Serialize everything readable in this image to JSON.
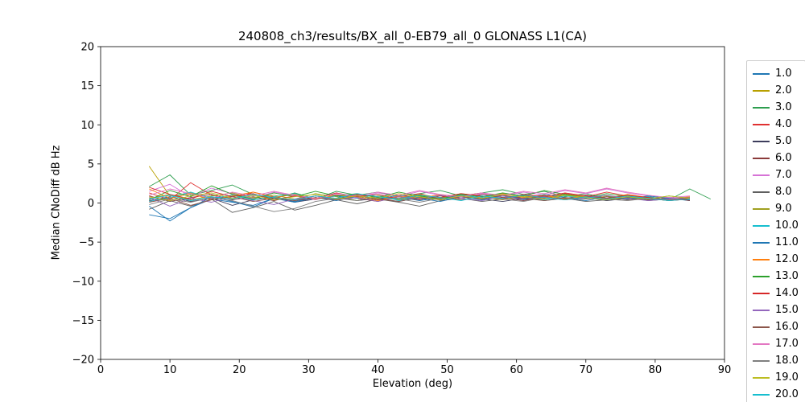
{
  "chart_data": {
    "type": "line",
    "title": "240808_ch3/results/BX_all_0-EB79_all_0 GLONASS L1(CA)",
    "xlabel": "Elevation (deg)",
    "ylabel": "Median CNoDiff dB Hz",
    "xlim": [
      0,
      90
    ],
    "ylim": [
      -20,
      20
    ],
    "x_ticks": [
      0,
      10,
      20,
      30,
      40,
      50,
      60,
      70,
      80,
      90
    ],
    "x_tick_labels": [
      "0",
      "10",
      "20",
      "30",
      "40",
      "50",
      "60",
      "70",
      "80",
      "90"
    ],
    "y_ticks": [
      -20,
      -15,
      -10,
      -5,
      0,
      5,
      10,
      15,
      20
    ],
    "y_tick_labels": [
      "−20",
      "−15",
      "−10",
      "−5",
      "0",
      "5",
      "10",
      "15",
      "20"
    ],
    "grid": false,
    "legend_position": "outside-right",
    "legend_clipped_at_bottom": true,
    "x": [
      7,
      10,
      13,
      16,
      19,
      22,
      25,
      28,
      31,
      34,
      37,
      40,
      43,
      46,
      49,
      52,
      55,
      58,
      61,
      64,
      67,
      70,
      73,
      76,
      79,
      82,
      85,
      88
    ],
    "series": [
      {
        "name": "1.0",
        "color": "#1f77b4",
        "values": [
          -0.4,
          -2.3,
          -0.6,
          0.5,
          0.1,
          -0.3,
          0.6,
          0.2,
          0.7,
          0.4,
          0.9,
          0.5,
          0.8,
          0.3,
          0.7,
          1.0,
          0.6,
          0.9,
          0.4,
          0.8,
          0.6,
          1.0,
          0.5,
          0.7,
          0.4,
          0.6,
          0.3,
          null
        ]
      },
      {
        "name": "2.0",
        "color": "#b8a000",
        "values": [
          4.7,
          0.9,
          1.3,
          0.6,
          1.0,
          0.4,
          0.8,
          0.3,
          0.9,
          0.5,
          1.1,
          0.7,
          0.4,
          0.9,
          0.6,
          1.1,
          0.8,
          0.5,
          0.9,
          0.6,
          1.0,
          0.7,
          0.9,
          0.5,
          0.8,
          0.4,
          0.6,
          null
        ]
      },
      {
        "name": "3.0",
        "color": "#2e9e4f",
        "values": [
          2.1,
          3.6,
          1.0,
          1.6,
          2.3,
          1.1,
          0.6,
          1.3,
          0.5,
          1.5,
          1.0,
          1.4,
          0.8,
          1.2,
          1.6,
          0.9,
          1.3,
          1.7,
          1.1,
          1.5,
          0.8,
          1.2,
          0.6,
          1.0,
          0.7,
          0.4,
          1.8,
          0.5
        ]
      },
      {
        "name": "4.0",
        "color": "#e03131",
        "values": [
          1.3,
          0.4,
          2.6,
          1.0,
          0.5,
          1.4,
          0.8,
          0.3,
          0.9,
          0.6,
          1.1,
          0.4,
          0.8,
          1.2,
          0.5,
          0.9,
          1.3,
          0.7,
          1.0,
          0.6,
          1.2,
          0.8,
          1.4,
          0.9,
          0.6,
          0.3,
          0.5,
          null
        ]
      },
      {
        "name": "5.0",
        "color": "#3d3d5c",
        "values": [
          0.3,
          0.8,
          0.2,
          0.6,
          -0.3,
          0.4,
          0.7,
          0.1,
          0.5,
          0.9,
          0.3,
          0.6,
          0.2,
          0.7,
          0.4,
          0.8,
          0.5,
          0.2,
          0.6,
          0.9,
          0.4,
          0.7,
          0.3,
          0.6,
          0.8,
          0.4,
          null,
          null
        ]
      },
      {
        "name": "6.0",
        "color": "#8b3a3a",
        "values": [
          0.9,
          0.2,
          0.7,
          1.1,
          0.4,
          0.8,
          0.3,
          0.9,
          0.5,
          1.0,
          0.6,
          0.2,
          0.8,
          0.4,
          0.9,
          0.6,
          1.1,
          0.7,
          0.3,
          0.8,
          0.5,
          1.0,
          0.6,
          0.9,
          0.4,
          0.7,
          0.3,
          null
        ]
      },
      {
        "name": "7.0",
        "color": "#d673d6",
        "values": [
          1.5,
          2.4,
          0.8,
          1.9,
          1.2,
          0.6,
          1.4,
          0.9,
          0.4,
          1.1,
          0.7,
          1.3,
          0.8,
          1.5,
          1.0,
          0.6,
          1.2,
          0.9,
          1.4,
          1.0,
          1.6,
          1.2,
          1.8,
          1.3,
          0.9,
          0.6,
          0.8,
          null
        ]
      },
      {
        "name": "8.0",
        "color": "#5f5f5f",
        "values": [
          -0.8,
          0.3,
          -0.4,
          0.5,
          -1.2,
          -0.6,
          0.2,
          -0.9,
          -0.3,
          0.4,
          -0.1,
          0.5,
          0.1,
          -0.4,
          0.3,
          0.6,
          0.2,
          0.5,
          0.8,
          0.3,
          0.6,
          0.2,
          0.4,
          0.7,
          0.3,
          0.5,
          null,
          null
        ]
      },
      {
        "name": "9.0",
        "color": "#a0a020",
        "values": [
          0.6,
          1.1,
          0.4,
          0.9,
          1.3,
          0.7,
          1.0,
          0.5,
          1.2,
          0.8,
          0.3,
          0.9,
          0.6,
          1.1,
          0.7,
          1.2,
          0.8,
          0.4,
          1.0,
          0.7,
          1.1,
          0.8,
          0.5,
          0.9,
          0.6,
          0.3,
          0.7,
          null
        ]
      },
      {
        "name": "10.0",
        "color": "#17becf",
        "values": [
          0.2,
          0.7,
          1.4,
          0.6,
          1.0,
          0.4,
          0.8,
          1.2,
          0.5,
          0.9,
          0.6,
          1.1,
          0.3,
          0.8,
          0.5,
          1.0,
          0.7,
          1.2,
          0.8,
          0.4,
          0.9,
          0.6,
          1.0,
          0.5,
          0.8,
          0.4,
          0.6,
          null
        ]
      },
      {
        "name": "11.0",
        "color": "#1f77b4",
        "values": [
          -1.5,
          -2.0,
          -0.6,
          0.8,
          0.2,
          -0.5,
          0.6,
          0.1,
          0.7,
          0.3,
          0.9,
          0.5,
          1.0,
          0.6,
          0.2,
          0.8,
          0.4,
          0.9,
          0.6,
          1.1,
          0.7,
          0.3,
          0.8,
          0.5,
          0.9,
          0.6,
          0.4,
          null
        ]
      },
      {
        "name": "12.0",
        "color": "#ff7f0e",
        "values": [
          1.8,
          0.6,
          1.2,
          0.4,
          0.9,
          1.4,
          0.7,
          1.1,
          0.5,
          1.0,
          0.8,
          0.3,
          0.9,
          0.6,
          1.1,
          0.4,
          0.8,
          1.2,
          0.7,
          1.0,
          0.5,
          0.9,
          0.6,
          1.1,
          0.7,
          0.4,
          0.8,
          null
        ]
      },
      {
        "name": "13.0",
        "color": "#2ca02c",
        "values": [
          0.4,
          1.6,
          0.8,
          2.2,
          1.1,
          0.5,
          1.3,
          0.8,
          1.5,
          0.9,
          1.2,
          0.7,
          1.4,
          0.9,
          0.5,
          1.1,
          0.8,
          1.3,
          0.9,
          1.6,
          1.1,
          0.7,
          1.2,
          0.8,
          0.5,
          0.9,
          0.6,
          null
        ]
      },
      {
        "name": "14.0",
        "color": "#d62728",
        "values": [
          2.0,
          1.1,
          0.5,
          1.5,
          0.8,
          1.2,
          0.4,
          0.9,
          0.6,
          1.3,
          0.8,
          1.1,
          0.5,
          1.0,
          0.7,
          1.2,
          0.9,
          0.5,
          1.1,
          0.8,
          1.3,
          0.9,
          0.6,
          1.0,
          0.7,
          0.4,
          0.6,
          null
        ]
      },
      {
        "name": "15.0",
        "color": "#9467bd",
        "values": [
          0.7,
          -0.4,
          0.6,
          0.1,
          0.8,
          0.3,
          -0.2,
          0.5,
          0.9,
          0.4,
          0.7,
          0.2,
          0.8,
          0.5,
          1.0,
          0.6,
          0.3,
          0.9,
          0.5,
          0.8,
          0.4,
          0.7,
          1.0,
          0.6,
          0.3,
          0.5,
          0.7,
          null
        ]
      },
      {
        "name": "16.0",
        "color": "#8c564b",
        "values": [
          0.1,
          0.6,
          -0.3,
          0.4,
          0.8,
          0.2,
          0.6,
          0.3,
          0.7,
          0.4,
          0.9,
          0.5,
          0.2,
          0.7,
          0.4,
          0.8,
          0.5,
          1.0,
          0.6,
          0.3,
          0.7,
          0.5,
          0.8,
          0.4,
          0.6,
          0.3,
          0.5,
          null
        ]
      },
      {
        "name": "17.0",
        "color": "#e377c2",
        "values": [
          1.0,
          1.8,
          1.2,
          0.6,
          1.4,
          0.9,
          1.5,
          1.0,
          0.6,
          1.2,
          0.9,
          1.4,
          1.0,
          1.6,
          1.1,
          0.8,
          1.3,
          1.0,
          1.5,
          1.2,
          1.7,
          1.3,
          1.9,
          1.4,
          1.0,
          0.7,
          0.9,
          null
        ]
      },
      {
        "name": "18.0",
        "color": "#7f7f7f",
        "values": [
          -0.2,
          0.5,
          0.1,
          0.7,
          0.3,
          -0.4,
          -1.1,
          -0.7,
          0.2,
          0.6,
          0.3,
          0.8,
          0.5,
          0.1,
          0.6,
          0.4,
          0.9,
          0.5,
          0.2,
          0.7,
          0.4,
          0.8,
          0.5,
          0.3,
          0.6,
          0.4,
          0.7,
          null
        ]
      },
      {
        "name": "19.0",
        "color": "#bcbd22",
        "values": [
          0.8,
          0.3,
          0.9,
          1.3,
          0.6,
          1.0,
          0.4,
          0.8,
          1.1,
          0.5,
          0.9,
          0.6,
          1.2,
          0.8,
          0.4,
          0.9,
          0.6,
          1.1,
          0.8,
          0.5,
          1.0,
          0.7,
          0.4,
          0.8,
          0.5,
          0.9,
          0.6,
          null
        ]
      },
      {
        "name": "20.0",
        "color": "#17becf",
        "values": [
          0.5,
          1.0,
          0.3,
          0.8,
          0.5,
          1.1,
          0.7,
          0.4,
          0.9,
          0.6,
          1.2,
          0.8,
          0.5,
          1.0,
          0.7,
          0.3,
          0.9,
          0.6,
          1.0,
          0.7,
          0.4,
          0.8,
          0.5,
          0.9,
          0.6,
          0.3,
          0.5,
          null
        ]
      }
    ]
  }
}
